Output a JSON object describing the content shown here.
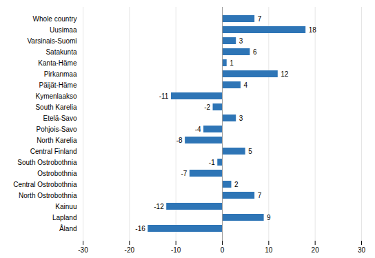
{
  "chart_data": {
    "type": "bar",
    "orientation": "horizontal",
    "categories": [
      "Whole country",
      "Uusimaa",
      "Varsinais-Suomi",
      "Satakunta",
      "Kanta-Häme",
      "Pirkanmaa",
      "Päijät-Häme",
      "Kymenlaakso",
      "South Karelia",
      "Etelä-Savo",
      "Pohjois-Savo",
      "North Karelia",
      "Central Finland",
      "South Ostrobothnia",
      "Ostrobothnia",
      "Central Ostrobothnia",
      "North Ostrobothnia",
      "Kainuu",
      "Lapland",
      "Åland"
    ],
    "values": [
      7,
      18,
      3,
      6,
      1,
      12,
      4,
      -11,
      -2,
      3,
      -4,
      -8,
      5,
      -1,
      -7,
      2,
      7,
      -12,
      9,
      -16
    ],
    "color": "#2e75b6",
    "xlim": [
      -30,
      30
    ],
    "xticks": [
      -30,
      -20,
      -10,
      0,
      10,
      20,
      30
    ],
    "grid": true,
    "data_labels": true
  }
}
